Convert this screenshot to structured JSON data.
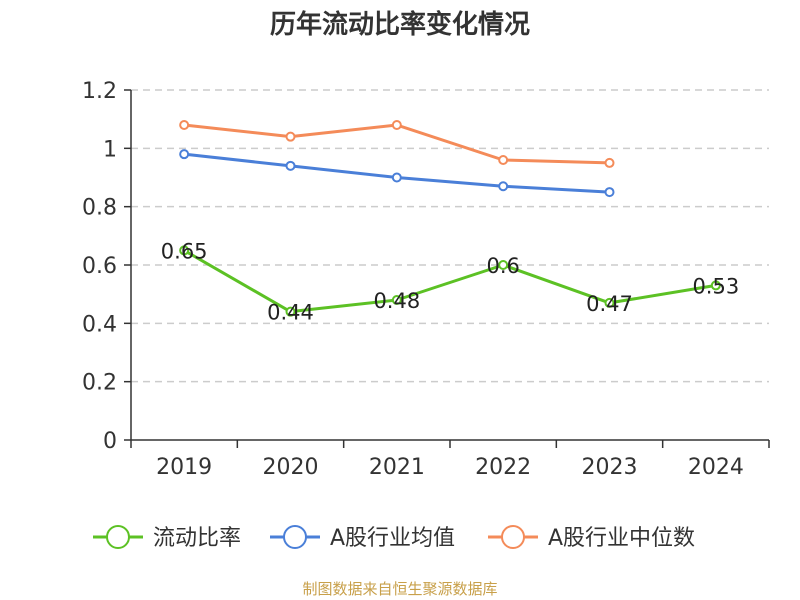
{
  "chart_data": {
    "type": "line",
    "title": "历年流动比率变化情况",
    "categories": [
      "2019",
      "2020",
      "2021",
      "2022",
      "2023",
      "2024"
    ],
    "ylim": [
      0,
      1.2
    ],
    "yticks": [
      "0",
      "0.2",
      "0.4",
      "0.6",
      "0.8",
      "1",
      "1.2"
    ],
    "grid": true,
    "legend_position": "bottom",
    "series": [
      {
        "name": "流动比率",
        "color": "#5cc124",
        "values": [
          0.65,
          0.44,
          0.48,
          0.6,
          0.47,
          0.53
        ],
        "labels": [
          "0.65",
          "0.44",
          "0.48",
          "0.6",
          "0.47",
          "0.53"
        ]
      },
      {
        "name": "A股行业均值",
        "color": "#4a7fd8",
        "values": [
          0.98,
          0.94,
          0.9,
          0.87,
          0.85,
          null
        ]
      },
      {
        "name": "A股行业中位数",
        "color": "#f48b59",
        "values": [
          1.08,
          1.04,
          1.08,
          0.96,
          0.95,
          null
        ]
      }
    ]
  },
  "source": {
    "text": "制图数据来自恒生聚源数据库",
    "color": "#c8a04a"
  }
}
